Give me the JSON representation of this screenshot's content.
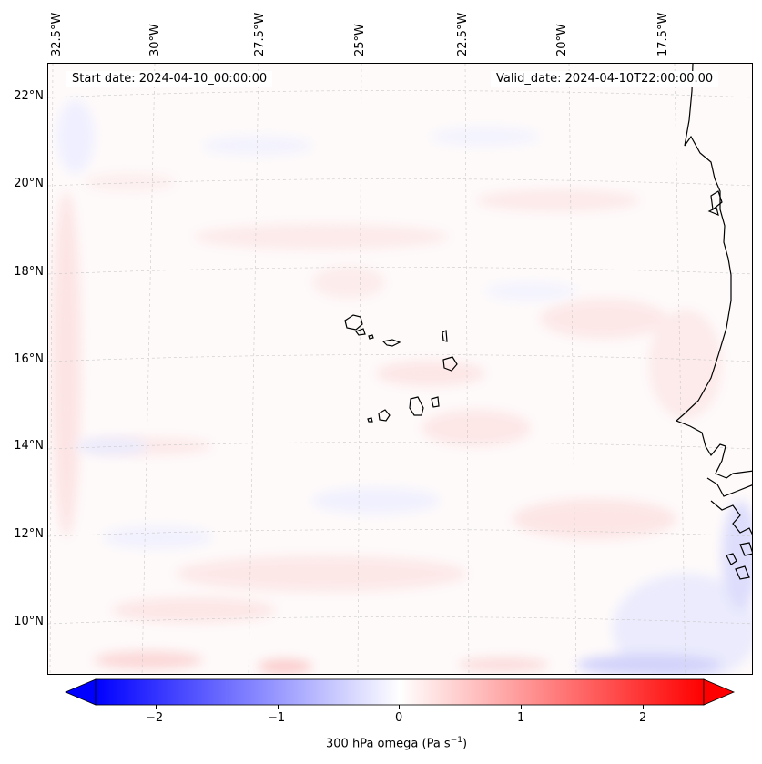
{
  "map": {
    "lon_labels": [
      "32.5°W",
      "30°W",
      "27.5°W",
      "25°W",
      "22.5°W",
      "20°W",
      "17.5°W"
    ],
    "lat_labels": [
      "22°N",
      "20°N",
      "18°N",
      "16°N",
      "14°N",
      "12°N",
      "10°N"
    ],
    "start_date": "Start date: 2024-04-10_00:00:00",
    "valid_date": "Valid_date: 2024-04-10T22:00:00.00",
    "field": "300 hPa omega",
    "colors": {
      "negative": "#0000ff",
      "neutral": "#ffffff",
      "positive": "#ff0000",
      "coast": "#000000",
      "grid": "#bbbbbb"
    }
  },
  "colorbar": {
    "ticks": [
      "−2",
      "−1",
      "0",
      "1",
      "2"
    ],
    "tick_values": [
      -2,
      -1,
      0,
      1,
      2
    ],
    "range": [
      -2.5,
      2.5
    ],
    "label_text": "300 hPa omega (Pa s",
    "label_exp": "−1",
    "label_close": ")"
  }
}
